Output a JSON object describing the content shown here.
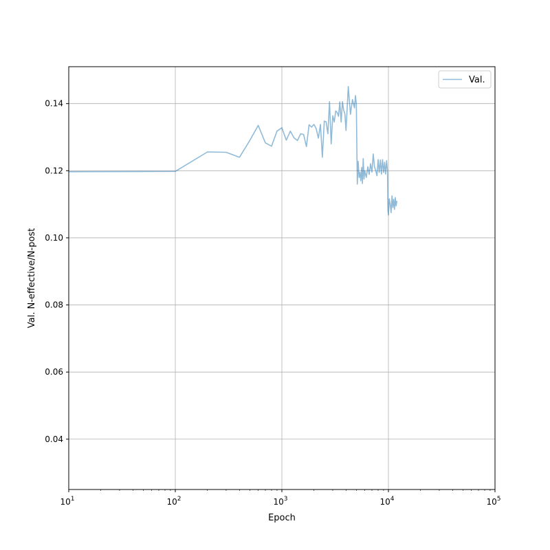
{
  "chart_data": {
    "type": "line",
    "title": "",
    "xlabel": "Epoch",
    "ylabel": "Val. N-effective/N-post",
    "xscale": "log",
    "xlim": [
      10,
      100000
    ],
    "ylim": [
      0.025,
      0.151
    ],
    "grid": true,
    "legend_position": "top-right",
    "x_ticks": [
      {
        "value": 10,
        "base": "10",
        "exp": "1"
      },
      {
        "value": 100,
        "base": "10",
        "exp": "2"
      },
      {
        "value": 1000,
        "base": "10",
        "exp": "3"
      },
      {
        "value": 10000,
        "base": "10",
        "exp": "4"
      },
      {
        "value": 100000,
        "base": "10",
        "exp": "5"
      }
    ],
    "y_ticks": [
      {
        "value": 0.04,
        "label": "0.04"
      },
      {
        "value": 0.06,
        "label": "0.06"
      },
      {
        "value": 0.08,
        "label": "0.08"
      },
      {
        "value": 0.1,
        "label": "0.10"
      },
      {
        "value": 0.12,
        "label": "0.12"
      },
      {
        "value": 0.14,
        "label": "0.14"
      }
    ],
    "series": [
      {
        "name": "Val.",
        "color": "#1f77b4",
        "opacity": 0.5,
        "x": [
          10,
          100,
          200,
          300,
          400,
          500,
          600,
          700,
          800,
          900,
          1000,
          1100,
          1200,
          1300,
          1400,
          1500,
          1600,
          1700,
          1800,
          1900,
          2000,
          2100,
          2200,
          2300,
          2400,
          2500,
          2600,
          2700,
          2800,
          2900,
          3000,
          3100,
          3200,
          3300,
          3400,
          3500,
          3600,
          3700,
          3800,
          3900,
          4000,
          4200,
          4400,
          4600,
          4800,
          4900,
          5000,
          5100,
          5200,
          5300,
          5400,
          5500,
          5600,
          5700,
          5800,
          5900,
          6000,
          6200,
          6400,
          6600,
          6800,
          7000,
          7200,
          7400,
          7600,
          7800,
          8000,
          8200,
          8400,
          8600,
          8800,
          9000,
          9200,
          9400,
          9600,
          9800,
          9900,
          10000,
          10200,
          10400,
          10600,
          10800,
          11000,
          11200,
          11400,
          11600,
          11800,
          12000
        ],
        "y": [
          0.1197,
          0.1198,
          0.1256,
          0.1255,
          0.124,
          0.129,
          0.1335,
          0.1283,
          0.1273,
          0.1318,
          0.1328,
          0.1291,
          0.1318,
          0.1298,
          0.129,
          0.131,
          0.1308,
          0.1272,
          0.1337,
          0.133,
          0.1338,
          0.1325,
          0.1297,
          0.1338,
          0.124,
          0.1348,
          0.1346,
          0.131,
          0.1406,
          0.128,
          0.1364,
          0.1345,
          0.1378,
          0.1374,
          0.1362,
          0.1405,
          0.1345,
          0.1406,
          0.138,
          0.137,
          0.132,
          0.1451,
          0.1368,
          0.1412,
          0.1387,
          0.1424,
          0.14,
          0.116,
          0.1228,
          0.118,
          0.1195,
          0.117,
          0.121,
          0.1162,
          0.1236,
          0.1175,
          0.12,
          0.118,
          0.1212,
          0.1189,
          0.1221,
          0.1196,
          0.125,
          0.1212,
          0.12,
          0.1185,
          0.1233,
          0.1195,
          0.1232,
          0.119,
          0.1233,
          0.1195,
          0.1225,
          0.119,
          0.123,
          0.12,
          0.108,
          0.1068,
          0.1116,
          0.11,
          0.1075,
          0.1125,
          0.109,
          0.1115,
          0.1085,
          0.112,
          0.1095,
          0.111
        ]
      }
    ]
  }
}
